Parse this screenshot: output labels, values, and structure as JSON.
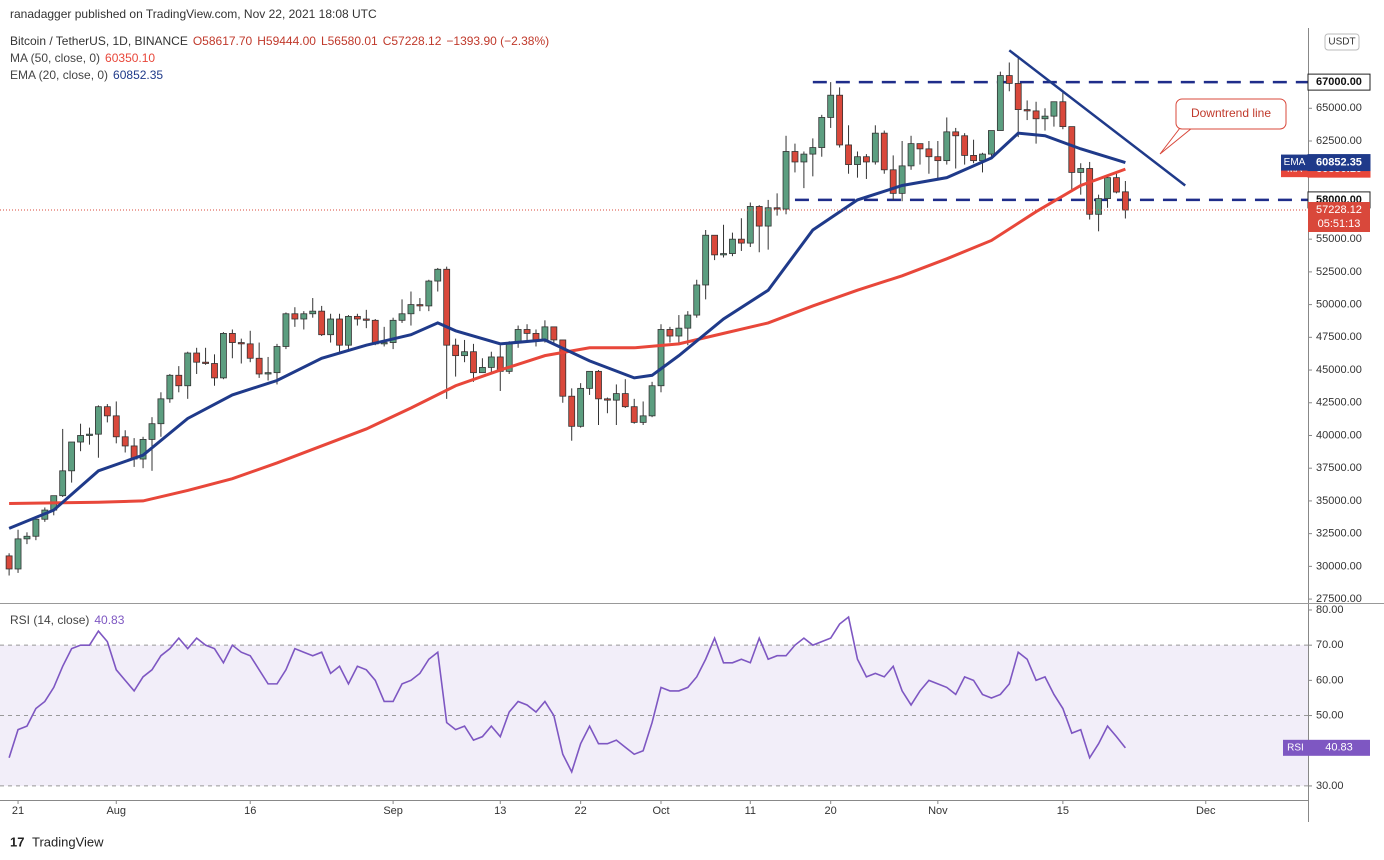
{
  "header": {
    "published": "ranadagger published on TradingView.com, Nov 22, 2021 18:08 UTC",
    "brand": "TradingView"
  },
  "chart_data": [
    {
      "type": "candlestick",
      "legend": {
        "symbol": "Bitcoin / TetherUS, 1D, BINANCE",
        "open": "O58617.70",
        "high": "H59444.00",
        "low": "L56580.01",
        "close": "C57228.12",
        "change": "−1393.90 (−2.38%)"
      },
      "currency": "USDT",
      "up_color": "#5c9e80",
      "down_color": "#d9483b",
      "xlim": [
        -1.02,
        145.45
      ],
      "xticks": [
        {
          "value": 1,
          "label": "21"
        },
        {
          "value": 12,
          "label": "Aug"
        },
        {
          "value": 27,
          "label": "16"
        },
        {
          "value": 43,
          "label": "Sep"
        },
        {
          "value": 55,
          "label": "13"
        },
        {
          "value": 64,
          "label": "22"
        },
        {
          "value": 73,
          "label": "Oct"
        },
        {
          "value": 83,
          "label": "11"
        },
        {
          "value": 92,
          "label": "20"
        },
        {
          "value": 104,
          "label": "Nov"
        },
        {
          "value": 118,
          "label": "15"
        },
        {
          "value": 134,
          "label": "Dec"
        }
      ],
      "ylim": [
        27200,
        70600
      ],
      "yticks": [
        {
          "value": 27500,
          "label": "27500.00"
        },
        {
          "value": 30000,
          "label": "30000.00"
        },
        {
          "value": 32500,
          "label": "32500.00"
        },
        {
          "value": 35000,
          "label": "35000.00"
        },
        {
          "value": 37500,
          "label": "37500.00"
        },
        {
          "value": 40000,
          "label": "40000.00"
        },
        {
          "value": 42500,
          "label": "42500.00"
        },
        {
          "value": 45000,
          "label": "45000.00"
        },
        {
          "value": 47500,
          "label": "47500.00"
        },
        {
          "value": 50000,
          "label": "50000.00"
        },
        {
          "value": 52500,
          "label": "52500.00"
        },
        {
          "value": 55000,
          "label": "55000.00"
        },
        {
          "value": 57500,
          "label": "57500.00"
        },
        {
          "value": 60000,
          "label": "60000.00"
        },
        {
          "value": 62500,
          "label": "62500.00"
        },
        {
          "value": 65000,
          "label": "65000.00"
        }
      ],
      "countdown": "05:51:13",
      "ohlc": [
        [
          30800,
          31000,
          29300,
          29800
        ],
        [
          29800,
          32800,
          29500,
          32100
        ],
        [
          32100,
          32600,
          31700,
          32300
        ],
        [
          32300,
          33600,
          32000,
          33600
        ],
        [
          33600,
          34500,
          33400,
          34300
        ],
        [
          34300,
          35400,
          33900,
          35400
        ],
        [
          35400,
          40500,
          35300,
          37300
        ],
        [
          37300,
          39500,
          36400,
          39500
        ],
        [
          39500,
          40900,
          38800,
          40000
        ],
        [
          40000,
          40600,
          39300,
          40100
        ],
        [
          40100,
          42300,
          38300,
          42200
        ],
        [
          42200,
          42400,
          41000,
          41500
        ],
        [
          41500,
          42600,
          39400,
          39900
        ],
        [
          39900,
          40400,
          38700,
          39200
        ],
        [
          39200,
          39800,
          37600,
          38200
        ],
        [
          38200,
          39900,
          37500,
          39700
        ],
        [
          39700,
          41400,
          37300,
          40900
        ],
        [
          40900,
          43300,
          39900,
          42800
        ],
        [
          42800,
          44700,
          42500,
          44600
        ],
        [
          44600,
          45300,
          43300,
          43800
        ],
        [
          43800,
          46400,
          42800,
          46300
        ],
        [
          46300,
          46700,
          44700,
          45600
        ],
        [
          45600,
          46700,
          45400,
          45500
        ],
        [
          45500,
          46200,
          43800,
          44400
        ],
        [
          44400,
          47900,
          44300,
          47800
        ],
        [
          47800,
          48100,
          45900,
          47100
        ],
        [
          47100,
          47400,
          45500,
          47000
        ],
        [
          47000,
          48000,
          45600,
          45900
        ],
        [
          45900,
          47100,
          44400,
          44700
        ],
        [
          44700,
          46000,
          44200,
          44800
        ],
        [
          44800,
          47000,
          43900,
          46800
        ],
        [
          46800,
          49400,
          46600,
          49300
        ],
        [
          49300,
          49800,
          48300,
          48900
        ],
        [
          48900,
          49500,
          48100,
          49300
        ],
        [
          49300,
          50500,
          49000,
          49500
        ],
        [
          49500,
          49900,
          47600,
          47700
        ],
        [
          47700,
          49300,
          47100,
          48900
        ],
        [
          48900,
          49300,
          46400,
          46900
        ],
        [
          46900,
          49200,
          46400,
          49100
        ],
        [
          49100,
          49300,
          48400,
          48900
        ],
        [
          48900,
          49600,
          48200,
          48800
        ],
        [
          48800,
          48900,
          46900,
          47000
        ],
        [
          47000,
          48300,
          46800,
          47100
        ],
        [
          47100,
          49000,
          46600,
          48800
        ],
        [
          48800,
          50400,
          48600,
          49300
        ],
        [
          49300,
          51000,
          48400,
          50000
        ],
        [
          50000,
          50500,
          49500,
          49900
        ],
        [
          49900,
          51900,
          49500,
          51800
        ],
        [
          51800,
          52800,
          51000,
          52700
        ],
        [
          52700,
          52900,
          42800,
          46900
        ],
        [
          46900,
          47400,
          44500,
          46100
        ],
        [
          46100,
          47300,
          45600,
          46400
        ],
        [
          46400,
          47000,
          44100,
          44800
        ],
        [
          44800,
          45900,
          44800,
          45200
        ],
        [
          45200,
          46400,
          44700,
          46000
        ],
        [
          46000,
          46900,
          43400,
          44900
        ],
        [
          44900,
          47200,
          44700,
          47100
        ],
        [
          47100,
          48400,
          46700,
          48100
        ],
        [
          48100,
          48500,
          47100,
          47800
        ],
        [
          47800,
          48100,
          46800,
          47300
        ],
        [
          47300,
          48800,
          47100,
          48300
        ],
        [
          48300,
          48300,
          46900,
          47300
        ],
        [
          47300,
          47300,
          42500,
          43000
        ],
        [
          43000,
          43600,
          39600,
          40700
        ],
        [
          40700,
          44000,
          40600,
          43600
        ],
        [
          43600,
          44900,
          43100,
          44900
        ],
        [
          44900,
          45000,
          40800,
          42800
        ],
        [
          42800,
          42900,
          41700,
          42700
        ],
        [
          42700,
          43900,
          40800,
          43200
        ],
        [
          43200,
          44300,
          42100,
          42200
        ],
        [
          42200,
          42800,
          40900,
          41000
        ],
        [
          41000,
          42600,
          40800,
          41500
        ],
        [
          41500,
          44100,
          41400,
          43800
        ],
        [
          43800,
          48500,
          43300,
          48100
        ],
        [
          48100,
          48300,
          47100,
          47600
        ],
        [
          47600,
          49200,
          47100,
          48200
        ],
        [
          48200,
          49500,
          46900,
          49200
        ],
        [
          49200,
          51900,
          49000,
          51500
        ],
        [
          51500,
          55700,
          50400,
          55300
        ],
        [
          55300,
          55300,
          53400,
          53800
        ],
        [
          53800,
          56100,
          53600,
          53900
        ],
        [
          53900,
          55500,
          53700,
          55000
        ],
        [
          55000,
          56600,
          54100,
          54700
        ],
        [
          54700,
          57800,
          54400,
          57500
        ],
        [
          57500,
          57600,
          54000,
          56000
        ],
        [
          56000,
          58000,
          54200,
          57400
        ],
        [
          57400,
          58500,
          56800,
          57300
        ],
        [
          57300,
          62900,
          56900,
          61700
        ],
        [
          61700,
          62300,
          60100,
          60900
        ],
        [
          60900,
          61700,
          58900,
          61500
        ],
        [
          61500,
          62700,
          59800,
          62000
        ],
        [
          62000,
          64500,
          61300,
          64300
        ],
        [
          64300,
          67000,
          63500,
          66000
        ],
        [
          66000,
          66600,
          62000,
          62200
        ],
        [
          62200,
          63700,
          60000,
          60700
        ],
        [
          60700,
          61700,
          59700,
          61300
        ],
        [
          61300,
          61500,
          59600,
          60900
        ],
        [
          60900,
          63700,
          60700,
          63100
        ],
        [
          63100,
          63300,
          60000,
          60300
        ],
        [
          60300,
          61400,
          58000,
          58500
        ],
        [
          58500,
          62500,
          57900,
          60600
        ],
        [
          60600,
          62900,
          60300,
          62300
        ],
        [
          62300,
          62300,
          60700,
          61900
        ],
        [
          61900,
          62500,
          60000,
          61300
        ],
        [
          61300,
          62500,
          59500,
          61000
        ],
        [
          61000,
          64300,
          60700,
          63200
        ],
        [
          63200,
          63500,
          60400,
          62900
        ],
        [
          62900,
          63100,
          60700,
          61400
        ],
        [
          61400,
          62600,
          60800,
          61000
        ],
        [
          61000,
          61600,
          60100,
          61500
        ],
        [
          61500,
          63300,
          61300,
          63300
        ],
        [
          63300,
          67800,
          63300,
          67500
        ],
        [
          67500,
          68500,
          66300,
          66900
        ],
        [
          66900,
          69000,
          62800,
          64900
        ],
        [
          64900,
          65600,
          64100,
          64800
        ],
        [
          64800,
          65500,
          62300,
          64200
        ],
        [
          64200,
          65000,
          63300,
          64400
        ],
        [
          64400,
          65500,
          63600,
          65500
        ],
        [
          65500,
          66300,
          63400,
          63600
        ],
        [
          63600,
          63600,
          58600,
          60100
        ],
        [
          60100,
          60800,
          58400,
          60400
        ],
        [
          60400,
          60900,
          56500,
          56900
        ],
        [
          56900,
          58400,
          55600,
          58100
        ],
        [
          58100,
          59800,
          57400,
          59700
        ],
        [
          59700,
          60000,
          58500,
          58600
        ],
        [
          58617.7,
          59444.0,
          56580.01,
          57228.12
        ]
      ],
      "series": [
        {
          "name": "MA",
          "legend_label": "MA (50, close, 0)",
          "legend_value": "60350.10",
          "color": "#e8473a",
          "x": [
            0,
            10,
            15,
            20,
            25,
            30,
            35,
            40,
            45,
            50,
            55,
            60,
            65,
            70,
            75,
            80,
            85,
            90,
            95,
            100,
            105,
            110,
            115,
            120,
            125
          ],
          "values": [
            34800,
            34900,
            35000,
            35800,
            36700,
            37900,
            39200,
            40500,
            42100,
            43800,
            45000,
            46100,
            46700,
            46700,
            47000,
            47800,
            48600,
            49900,
            51100,
            52200,
            53500,
            54900,
            57100,
            59100,
            60350.1
          ],
          "value_labels": [
            "34800",
            "34900",
            "35000",
            "35800",
            "36700",
            "37900",
            "39200",
            "40500",
            "42100",
            "43800",
            "45000",
            "46100",
            "46700",
            "46700",
            "47000",
            "47800",
            "48600",
            "49900",
            "51100",
            "52200",
            "53500",
            "54900",
            "57100",
            "59100",
            "60350.10"
          ]
        },
        {
          "name": "EMA",
          "legend_label": "EMA (20, close, 0)",
          "legend_value": "60852.35",
          "color": "#1f3a8a",
          "x": [
            0,
            5,
            10,
            15,
            20,
            25,
            30,
            35,
            40,
            45,
            48,
            50,
            55,
            60,
            65,
            70,
            72,
            75,
            80,
            85,
            90,
            95,
            100,
            105,
            110,
            113,
            116,
            120,
            125
          ],
          "values": [
            32900,
            34300,
            37300,
            38500,
            41300,
            43100,
            44200,
            45900,
            46900,
            47700,
            48600,
            48000,
            47000,
            47300,
            45700,
            44400,
            44600,
            46100,
            48900,
            51100,
            55700,
            58000,
            59100,
            59700,
            61200,
            63100,
            62900,
            61900,
            60852.35
          ]
        }
      ],
      "levels": [
        {
          "value": 67000,
          "label": "67000.00",
          "start": 90
        },
        {
          "value": 58000,
          "label": "58000.00",
          "start": 88
        }
      ],
      "trendline": {
        "x": [
          112,
          131.7
        ],
        "y": [
          69430,
          59100
        ],
        "color": "#1f3a8a"
      },
      "annotation": "Downtrend line"
    },
    {
      "type": "line",
      "legend_label": "RSI (14, close)",
      "name": "RSI",
      "color": "#7e57c2",
      "ylim": [
        26,
        81.7
      ],
      "yticks": [
        {
          "value": 30,
          "label": "30.00"
        },
        {
          "value": 40,
          "label": "40.00"
        },
        {
          "value": 50,
          "label": "50.00"
        },
        {
          "value": 60,
          "label": "60.00"
        },
        {
          "value": 70,
          "label": "70.00"
        },
        {
          "value": 80,
          "label": "80.00"
        }
      ],
      "band": [
        30,
        70
      ],
      "midline": 50,
      "values": [
        38,
        46,
        47,
        52,
        54,
        58,
        64,
        69,
        70,
        70,
        74,
        71,
        63,
        60,
        57,
        61,
        63,
        67,
        69,
        72,
        69,
        72,
        70,
        69,
        65,
        70,
        68,
        67,
        63,
        59,
        59,
        63,
        69,
        68,
        67,
        68,
        62,
        64,
        59,
        64,
        63,
        60,
        54,
        54,
        59,
        60,
        62,
        66,
        68,
        48,
        46,
        47,
        43,
        44,
        47,
        44,
        51,
        54,
        53,
        51,
        54,
        50,
        39,
        34,
        42,
        47,
        42,
        42,
        43,
        41,
        39,
        40,
        48,
        58,
        57,
        57,
        58,
        61,
        66,
        72,
        65,
        65,
        66,
        65,
        72,
        66,
        67,
        67,
        70,
        72,
        70,
        71,
        72,
        76,
        78,
        66,
        61,
        62,
        61,
        64,
        57,
        53,
        57,
        60,
        59,
        58,
        56,
        61,
        60,
        56,
        55,
        56,
        59,
        68,
        66,
        60,
        61,
        56,
        52,
        45,
        46,
        38,
        42,
        47,
        44,
        40.83
      ]
    }
  ]
}
